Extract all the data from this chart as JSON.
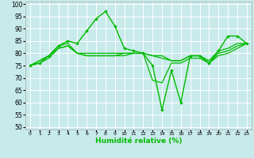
{
  "title": "",
  "xlabel": "Humidité relative (%)",
  "ylabel": "",
  "bg_color": "#c8eaea",
  "grid_color": "#ffffff",
  "line_color": "#00bb00",
  "xlim": [
    -0.5,
    23.5
  ],
  "ylim": [
    49,
    101
  ],
  "yticks": [
    50,
    55,
    60,
    65,
    70,
    75,
    80,
    85,
    90,
    95,
    100
  ],
  "xticks": [
    0,
    1,
    2,
    3,
    4,
    5,
    6,
    7,
    8,
    9,
    10,
    11,
    12,
    13,
    14,
    15,
    16,
    17,
    18,
    19,
    20,
    21,
    22,
    23
  ],
  "series": [
    {
      "x": [
        0,
        1,
        2,
        3,
        4,
        5,
        6,
        7,
        8,
        9,
        10,
        11,
        12,
        13,
        14,
        15,
        16,
        17,
        18,
        19,
        20,
        21,
        22,
        23
      ],
      "y": [
        75,
        76,
        79,
        83,
        85,
        84,
        89,
        94,
        97,
        91,
        82,
        81,
        80,
        75,
        57,
        73,
        60,
        79,
        79,
        76,
        81,
        87,
        87,
        84
      ],
      "marker": true
    },
    {
      "x": [
        0,
        1,
        2,
        3,
        4,
        5,
        6,
        7,
        8,
        9,
        10,
        11,
        12,
        13,
        14,
        15,
        16,
        17,
        18,
        19,
        20,
        21,
        22,
        23
      ],
      "y": [
        75,
        77,
        79,
        83,
        84,
        80,
        80,
        80,
        80,
        80,
        80,
        80,
        80,
        79,
        79,
        77,
        77,
        79,
        79,
        77,
        81,
        82,
        84,
        84
      ],
      "marker": false
    },
    {
      "x": [
        0,
        1,
        2,
        3,
        4,
        5,
        6,
        7,
        8,
        9,
        10,
        11,
        12,
        13,
        14,
        15,
        16,
        17,
        18,
        19,
        20,
        21,
        22,
        23
      ],
      "y": [
        75,
        77,
        79,
        82,
        83,
        80,
        79,
        79,
        79,
        79,
        80,
        80,
        80,
        79,
        78,
        77,
        77,
        79,
        79,
        76,
        80,
        81,
        83,
        84
      ],
      "marker": false
    },
    {
      "x": [
        0,
        1,
        2,
        3,
        4,
        5,
        6,
        7,
        8,
        9,
        10,
        11,
        12,
        13,
        14,
        15,
        16,
        17,
        18,
        19,
        20,
        21,
        22,
        23
      ],
      "y": [
        75,
        76,
        78,
        82,
        83,
        80,
        79,
        79,
        79,
        79,
        79,
        80,
        80,
        69,
        68,
        76,
        76,
        78,
        78,
        76,
        79,
        80,
        82,
        84
      ],
      "marker": false
    }
  ]
}
